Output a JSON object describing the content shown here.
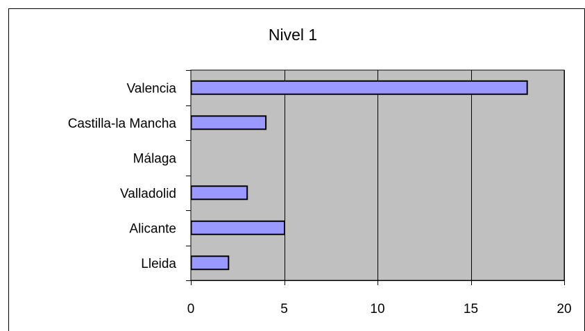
{
  "chart_data": {
    "type": "bar",
    "orientation": "horizontal",
    "title": "Nivel 1",
    "categories": [
      "Valencia",
      "Castilla-la Mancha",
      "Málaga",
      "Valladolid",
      "Alicante",
      "Lleida"
    ],
    "values": [
      18,
      4,
      0,
      3,
      5,
      2
    ],
    "xlim": [
      0,
      20
    ],
    "xticks": [
      "0",
      "5",
      "10",
      "15",
      "20"
    ],
    "xtick_values": [
      0,
      5,
      10,
      15,
      20
    ],
    "grid": "vertical",
    "legend": "none",
    "colors": {
      "bar_fill": "#9999ff",
      "bar_stroke": "#000000",
      "plot_background": "#c0c0c0",
      "gridline": "#000000"
    }
  }
}
